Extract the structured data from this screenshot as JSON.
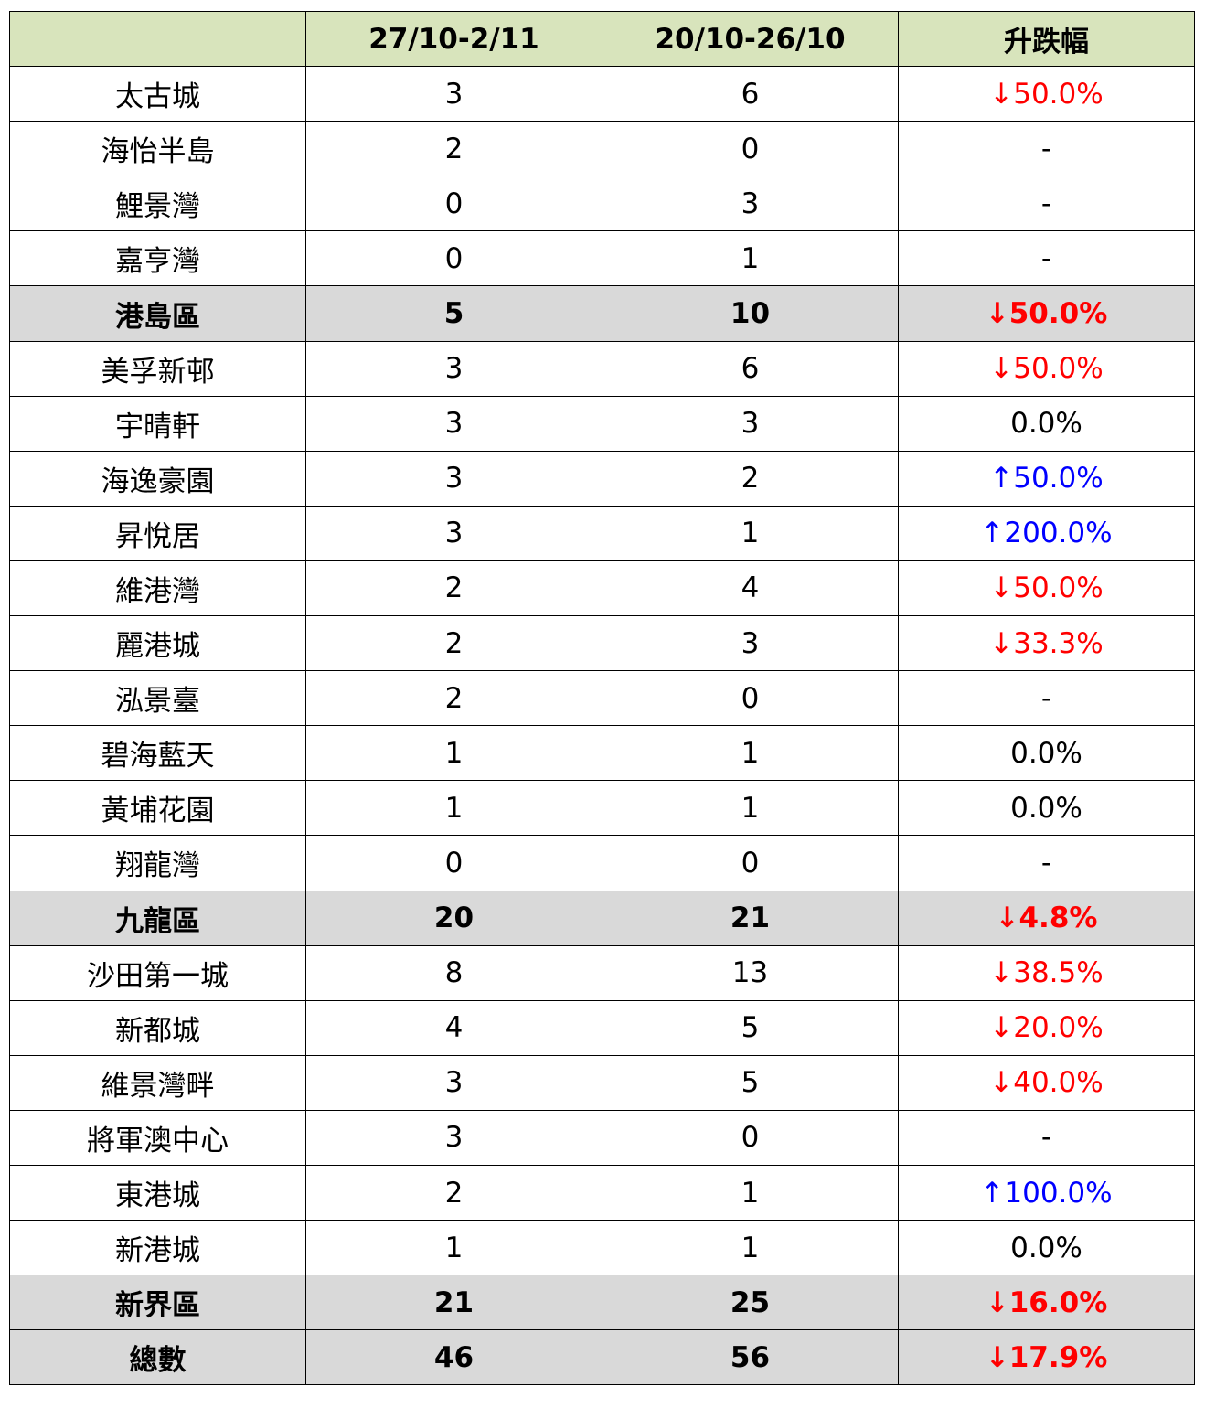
{
  "header": {
    "name": "",
    "period_current": "27/10-2/11",
    "period_previous": "20/10-26/10",
    "change": "升跌幅"
  },
  "colors": {
    "header_bg": "#d8e4bc",
    "subtotal_bg": "#d9d9d9",
    "down": "#ff0000",
    "up": "#0000ff"
  },
  "rows": [
    {
      "name": "太古城",
      "current": "3",
      "previous": "6",
      "change": "↓50.0%",
      "trend": "down"
    },
    {
      "name": "海怡半島",
      "current": "2",
      "previous": "0",
      "change": "-",
      "trend": "none"
    },
    {
      "name": "鯉景灣",
      "current": "0",
      "previous": "3",
      "change": "-",
      "trend": "none"
    },
    {
      "name": "嘉亨灣",
      "current": "0",
      "previous": "1",
      "change": "-",
      "trend": "none"
    },
    {
      "name": "港島區",
      "current": "5",
      "previous": "10",
      "change": "↓50.0%",
      "trend": "down",
      "subtotal": true
    },
    {
      "name": "美孚新邨",
      "current": "3",
      "previous": "6",
      "change": "↓50.0%",
      "trend": "down"
    },
    {
      "name": "宇晴軒",
      "current": "3",
      "previous": "3",
      "change": "0.0%",
      "trend": "none"
    },
    {
      "name": "海逸豪園",
      "current": "3",
      "previous": "2",
      "change": "↑50.0%",
      "trend": "up"
    },
    {
      "name": "昇悅居",
      "current": "3",
      "previous": "1",
      "change": "↑200.0%",
      "trend": "up"
    },
    {
      "name": "維港灣",
      "current": "2",
      "previous": "4",
      "change": "↓50.0%",
      "trend": "down"
    },
    {
      "name": "麗港城",
      "current": "2",
      "previous": "3",
      "change": "↓33.3%",
      "trend": "down"
    },
    {
      "name": "泓景臺",
      "current": "2",
      "previous": "0",
      "change": "-",
      "trend": "none"
    },
    {
      "name": "碧海藍天",
      "current": "1",
      "previous": "1",
      "change": "0.0%",
      "trend": "none"
    },
    {
      "name": "黃埔花園",
      "current": "1",
      "previous": "1",
      "change": "0.0%",
      "trend": "none"
    },
    {
      "name": "翔龍灣",
      "current": "0",
      "previous": "0",
      "change": "-",
      "trend": "none"
    },
    {
      "name": "九龍區",
      "current": "20",
      "previous": "21",
      "change": "↓4.8%",
      "trend": "down",
      "subtotal": true
    },
    {
      "name": "沙田第一城",
      "current": "8",
      "previous": "13",
      "change": "↓38.5%",
      "trend": "down"
    },
    {
      "name": "新都城",
      "current": "4",
      "previous": "5",
      "change": "↓20.0%",
      "trend": "down"
    },
    {
      "name": "維景灣畔",
      "current": "3",
      "previous": "5",
      "change": "↓40.0%",
      "trend": "down"
    },
    {
      "name": "將軍澳中心",
      "current": "3",
      "previous": "0",
      "change": "-",
      "trend": "none"
    },
    {
      "name": "東港城",
      "current": "2",
      "previous": "1",
      "change": "↑100.0%",
      "trend": "up"
    },
    {
      "name": "新港城",
      "current": "1",
      "previous": "1",
      "change": "0.0%",
      "trend": "none"
    },
    {
      "name": "新界區",
      "current": "21",
      "previous": "25",
      "change": "↓16.0%",
      "trend": "down",
      "subtotal": true
    },
    {
      "name": "總數",
      "current": "46",
      "previous": "56",
      "change": "↓17.9%",
      "trend": "down",
      "subtotal": true
    }
  ]
}
